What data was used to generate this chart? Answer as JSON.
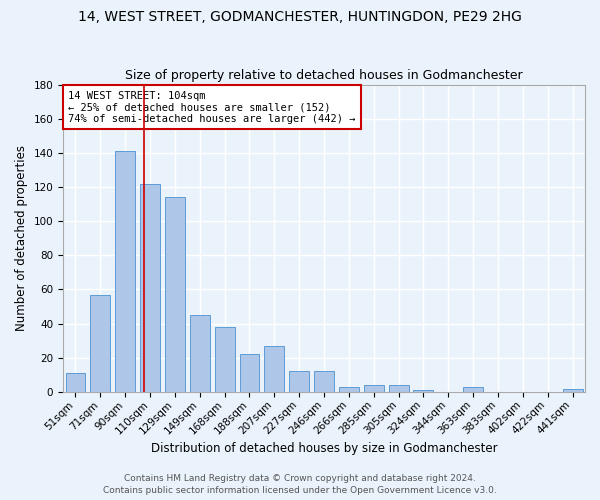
{
  "title1": "14, WEST STREET, GODMANCHESTER, HUNTINGDON, PE29 2HG",
  "title2": "Size of property relative to detached houses in Godmanchester",
  "xlabel": "Distribution of detached houses by size in Godmanchester",
  "ylabel": "Number of detached properties",
  "categories": [
    "51sqm",
    "71sqm",
    "90sqm",
    "110sqm",
    "129sqm",
    "149sqm",
    "168sqm",
    "188sqm",
    "207sqm",
    "227sqm",
    "246sqm",
    "266sqm",
    "285sqm",
    "305sqm",
    "324sqm",
    "344sqm",
    "363sqm",
    "383sqm",
    "402sqm",
    "422sqm",
    "441sqm"
  ],
  "values": [
    11,
    57,
    141,
    122,
    114,
    45,
    38,
    22,
    27,
    12,
    12,
    3,
    4,
    4,
    1,
    0,
    3,
    0,
    0,
    0,
    2
  ],
  "bar_color": "#aec6e8",
  "bar_edge_color": "#5b9bd5",
  "red_line_x": 2.75,
  "red_line_color": "#cc0000",
  "annotation_text": "14 WEST STREET: 104sqm\n← 25% of detached houses are smaller (152)\n74% of semi-detached houses are larger (442) →",
  "annotation_box_color": "#ffffff",
  "annotation_box_edge": "#cc0000",
  "ylim": [
    0,
    180
  ],
  "yticks": [
    0,
    20,
    40,
    60,
    80,
    100,
    120,
    140,
    160,
    180
  ],
  "footer1": "Contains HM Land Registry data © Crown copyright and database right 2024.",
  "footer2": "Contains public sector information licensed under the Open Government Licence v3.0.",
  "bg_color": "#eaf3fb",
  "plot_bg_color": "#eaf3fb",
  "grid_color": "#ffffff",
  "title_fontsize": 10,
  "subtitle_fontsize": 9,
  "tick_fontsize": 7.5,
  "label_fontsize": 8.5,
  "footer_fontsize": 6.5
}
